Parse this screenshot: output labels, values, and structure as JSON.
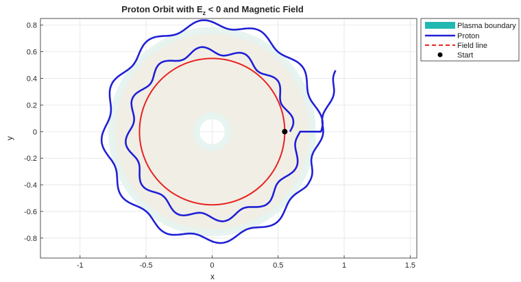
{
  "chart_data": {
    "type": "line",
    "title": "Proton Orbit with E",
    "title_subscript": "z",
    "title_rest": " < 0  and  Magnetic  Field",
    "xlabel": "x",
    "ylabel": "y",
    "xlim": [
      -1.3,
      1.55
    ],
    "ylim": [
      -0.95,
      0.85
    ],
    "xticks": [
      -1,
      -0.5,
      0,
      0.5,
      1,
      1.5
    ],
    "xtick_labels": [
      "-1",
      "-0.5",
      "0",
      "0.5",
      "1",
      "1.5"
    ],
    "yticks": [
      -0.8,
      -0.6,
      -0.4,
      -0.2,
      0,
      0.2,
      0.4,
      0.6,
      0.8
    ],
    "ytick_labels": [
      "-0.8",
      "-0.6",
      "-0.4",
      "-0.2",
      "0",
      "0.2",
      "0.4",
      "0.6",
      "0.8"
    ],
    "grid": true,
    "legend_position": "top-right outside",
    "plasma_boundary": {
      "inner_radius": 0.12,
      "outer_radius": 0.76,
      "fill_color": "#f1eee6",
      "edge_color": "#e4f3ee"
    },
    "field_line": {
      "radius": 0.55,
      "color": "#e8211e"
    },
    "start": {
      "x": 0.55,
      "y": 0.0
    },
    "series": [
      {
        "name": "Plasma boundary",
        "style": "patch",
        "color": "#20b8b0"
      },
      {
        "name": "Proton",
        "style": "solid",
        "color": "#1f1fd6",
        "orbit": {
          "outer_loop_radius": 0.81,
          "inner_loop_radius": 0.55,
          "wiggle_amplitude": 0.03,
          "wiggle_count": 12,
          "tail_start": {
            "x": 0.95,
            "y": 0.46
          }
        }
      },
      {
        "name": "Field line",
        "style": "dashed",
        "color": "#e8211e"
      },
      {
        "name": "Start",
        "style": "marker",
        "color": "#000000"
      }
    ]
  }
}
